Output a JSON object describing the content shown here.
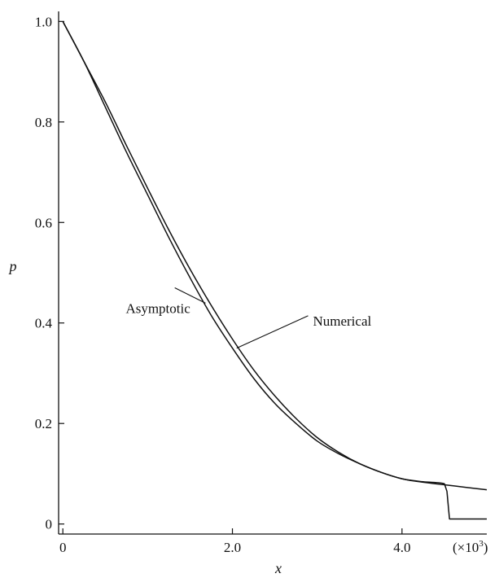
{
  "chart_data": {
    "type": "line",
    "xlabel": "x",
    "ylabel": "p",
    "x_multiplier_label": "(×10",
    "x_multiplier_exp": "3",
    "x_multiplier_close": ")",
    "xlim": [
      -0.05,
      5.0
    ],
    "ylim": [
      -0.02,
      1.02
    ],
    "xticks": [
      0,
      2.0,
      4.0
    ],
    "xtick_labels": [
      "0",
      "2.0",
      "4.0"
    ],
    "yticks": [
      0,
      0.2,
      0.4,
      0.6,
      0.8,
      1.0
    ],
    "ytick_labels": [
      "0",
      "0.2",
      "0.4",
      "0.6",
      "0.8",
      "1.0"
    ],
    "grid": false,
    "series": [
      {
        "name": "Numerical",
        "x": [
          0,
          0.25,
          0.5,
          0.75,
          1.0,
          1.25,
          1.5,
          1.75,
          2.0,
          2.25,
          2.5,
          2.75,
          3.0,
          3.25,
          3.5,
          3.75,
          4.0,
          4.25,
          4.5,
          4.53,
          4.56,
          4.6,
          4.75,
          5.0
        ],
        "y": [
          1.0,
          0.92,
          0.83,
          0.74,
          0.655,
          0.57,
          0.49,
          0.415,
          0.35,
          0.29,
          0.24,
          0.2,
          0.165,
          0.14,
          0.12,
          0.103,
          0.09,
          0.084,
          0.08,
          0.065,
          0.01,
          0.01,
          0.01,
          0.01
        ]
      },
      {
        "name": "Asymptotic",
        "x": [
          0,
          0.25,
          0.5,
          0.75,
          1.0,
          1.25,
          1.5,
          1.75,
          2.0,
          2.25,
          2.5,
          2.75,
          3.0,
          3.25,
          3.5,
          3.75,
          4.0,
          4.25,
          4.5,
          4.75,
          5.0
        ],
        "y": [
          1.0,
          0.92,
          0.84,
          0.753,
          0.668,
          0.585,
          0.507,
          0.435,
          0.368,
          0.307,
          0.255,
          0.21,
          0.172,
          0.143,
          0.12,
          0.103,
          0.09,
          0.083,
          0.078,
          0.073,
          0.068
        ]
      }
    ],
    "annotations": [
      {
        "text": "Asymptotic",
        "x": 0.78,
        "y": 0.42,
        "to_x": 1.32,
        "to_y": 0.47
      },
      {
        "text": "Numerical",
        "x": 2.95,
        "y": 0.395,
        "to_x": 2.05,
        "to_y": 0.35
      }
    ]
  }
}
